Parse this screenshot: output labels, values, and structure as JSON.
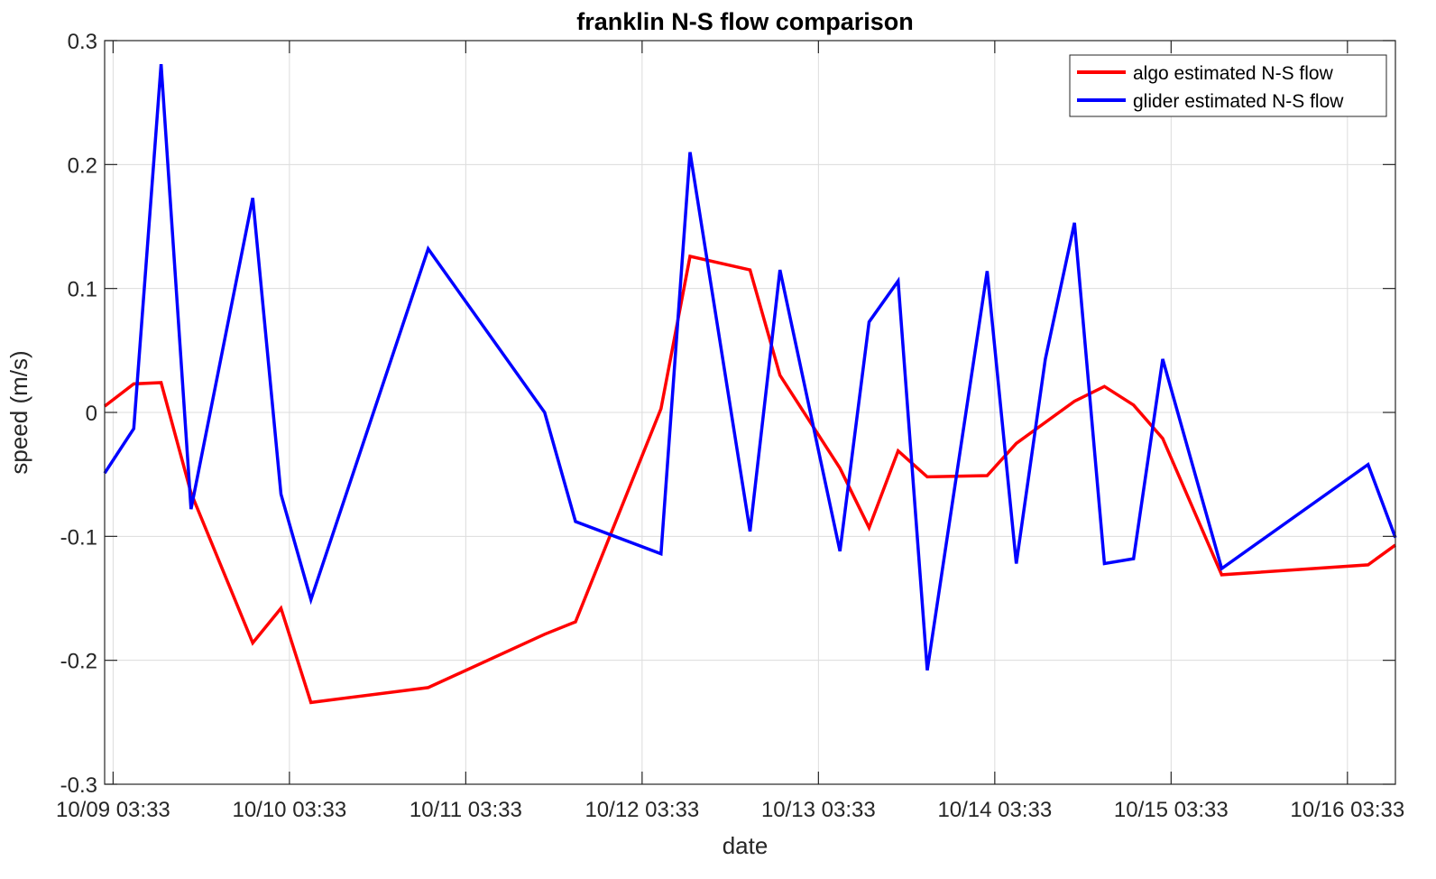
{
  "chart_data": {
    "type": "line",
    "title": "franklin N-S flow comparison",
    "xlabel": "date",
    "ylabel": "speed (m/s)",
    "x_unit": "days (October)",
    "xlim": [
      9.1,
      16.42
    ],
    "ylim": [
      -0.3,
      0.3
    ],
    "grid": true,
    "legend_position": "top-right",
    "x_ticks": [
      9.148,
      10.148,
      11.148,
      12.148,
      13.148,
      14.148,
      15.148,
      16.148
    ],
    "x_tick_labels": [
      "10/09 03:33",
      "10/10 03:33",
      "10/11 03:33",
      "10/12 03:33",
      "10/13 03:33",
      "10/14 03:33",
      "10/15 03:33",
      "10/16 03:33"
    ],
    "y_ticks": [
      -0.3,
      -0.2,
      -0.1,
      0,
      0.1,
      0.2,
      0.3
    ],
    "y_tick_labels": [
      "-0.3",
      "-0.2",
      "-0.1",
      "0",
      "0.1",
      "0.2",
      "0.3"
    ],
    "series": [
      {
        "name": "algo estimated N-S flow",
        "color": "#ff0000",
        "points": [
          [
            9.1,
            0.005
          ],
          [
            9.265,
            0.023
          ],
          [
            9.42,
            0.024
          ],
          [
            9.59,
            -0.065
          ],
          [
            9.94,
            -0.186
          ],
          [
            10.1,
            -0.158
          ],
          [
            10.27,
            -0.234
          ],
          [
            10.935,
            -0.222
          ],
          [
            11.595,
            -0.179
          ],
          [
            11.77,
            -0.169
          ],
          [
            12.255,
            0.003
          ],
          [
            12.42,
            0.126
          ],
          [
            12.76,
            0.115
          ],
          [
            12.93,
            0.03
          ],
          [
            13.27,
            -0.045
          ],
          [
            13.435,
            -0.093
          ],
          [
            13.6,
            -0.031
          ],
          [
            13.765,
            -0.052
          ],
          [
            14.105,
            -0.051
          ],
          [
            14.27,
            -0.025
          ],
          [
            14.6,
            0.009
          ],
          [
            14.77,
            0.021
          ],
          [
            14.935,
            0.006
          ],
          [
            15.1,
            -0.021
          ],
          [
            15.435,
            -0.131
          ],
          [
            16.265,
            -0.123
          ],
          [
            16.42,
            -0.107
          ]
        ]
      },
      {
        "name": "glider estimated N-S flow",
        "color": "#0000ff",
        "points": [
          [
            9.1,
            -0.049
          ],
          [
            9.265,
            -0.013
          ],
          [
            9.42,
            0.281
          ],
          [
            9.59,
            -0.078
          ],
          [
            9.94,
            0.173
          ],
          [
            10.1,
            -0.066
          ],
          [
            10.27,
            -0.151
          ],
          [
            10.935,
            0.132
          ],
          [
            11.595,
            0.0
          ],
          [
            11.77,
            -0.088
          ],
          [
            12.255,
            -0.114
          ],
          [
            12.42,
            0.21
          ],
          [
            12.76,
            -0.096
          ],
          [
            12.93,
            0.115
          ],
          [
            13.27,
            -0.112
          ],
          [
            13.435,
            0.073
          ],
          [
            13.6,
            0.106
          ],
          [
            13.765,
            -0.208
          ],
          [
            14.105,
            0.114
          ],
          [
            14.27,
            -0.122
          ],
          [
            14.435,
            0.043
          ],
          [
            14.6,
            0.153
          ],
          [
            14.77,
            -0.122
          ],
          [
            14.935,
            -0.118
          ],
          [
            15.1,
            0.043
          ],
          [
            15.435,
            -0.126
          ],
          [
            16.265,
            -0.042
          ],
          [
            16.42,
            -0.101
          ]
        ]
      }
    ]
  }
}
